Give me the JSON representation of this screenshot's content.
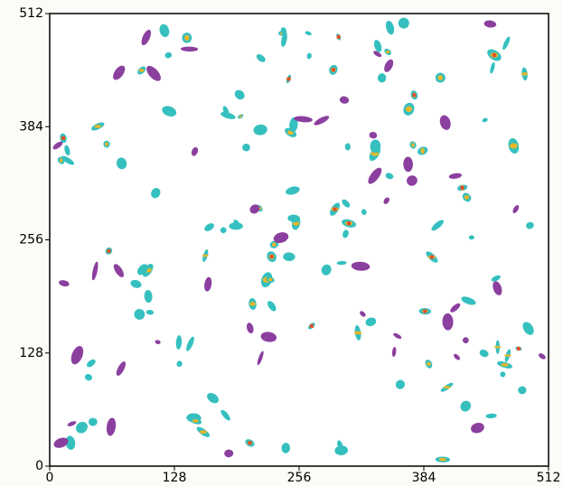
{
  "chart_data": {
    "type": "contour",
    "xlim": [
      0,
      512
    ],
    "ylim": [
      0,
      512
    ],
    "xticks": [
      0,
      128,
      256,
      384,
      512
    ],
    "yticks": [
      0,
      128,
      256,
      384,
      512
    ],
    "grid": false
  }
}
